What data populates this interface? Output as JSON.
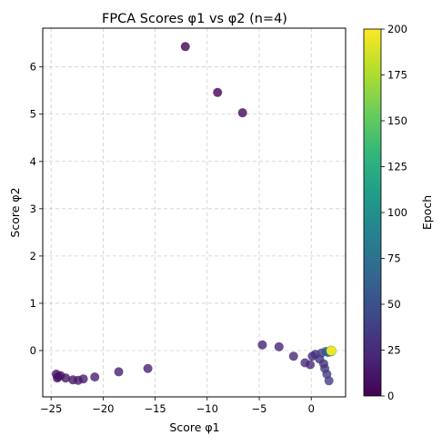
{
  "chart_data": {
    "type": "scatter",
    "title": "FPCA Scores φ1 vs φ2 (n=4)",
    "xlabel": "Score φ1",
    "ylabel": "Score φ2",
    "xlim": [
      -25.8,
      3.3
    ],
    "ylim": [
      -0.98,
      6.82
    ],
    "xticks": [
      -25,
      -20,
      -15,
      -10,
      -5,
      0
    ],
    "yticks": [
      0,
      1,
      2,
      3,
      4,
      5,
      6
    ],
    "grid": true,
    "colormap": "viridis",
    "colorbar": {
      "label": "Epoch",
      "range": [
        0,
        200
      ],
      "ticks": [
        0,
        25,
        50,
        75,
        100,
        125,
        150,
        175,
        200
      ]
    },
    "viridis_stops": [
      "#440154",
      "#482878",
      "#3e4989",
      "#31688e",
      "#26828e",
      "#1f9e89",
      "#35b779",
      "#6ece58",
      "#b5de2b",
      "#fde725"
    ],
    "points": [
      {
        "x": -24.5,
        "y": -0.5,
        "epoch": 8
      },
      {
        "x": -24.3,
        "y": -0.55,
        "epoch": 9
      },
      {
        "x": -24.1,
        "y": -0.53,
        "epoch": 10
      },
      {
        "x": -24.4,
        "y": -0.58,
        "epoch": 11
      },
      {
        "x": -23.6,
        "y": -0.58,
        "epoch": 12
      },
      {
        "x": -22.9,
        "y": -0.62,
        "epoch": 13
      },
      {
        "x": -22.4,
        "y": -0.63,
        "epoch": 14
      },
      {
        "x": -21.9,
        "y": -0.6,
        "epoch": 15
      },
      {
        "x": -20.8,
        "y": -0.56,
        "epoch": 16
      },
      {
        "x": -18.5,
        "y": -0.45,
        "epoch": 17
      },
      {
        "x": -15.7,
        "y": -0.38,
        "epoch": 18
      },
      {
        "x": -12.1,
        "y": 6.43,
        "epoch": 1
      },
      {
        "x": -9.0,
        "y": 5.46,
        "epoch": 2
      },
      {
        "x": -6.6,
        "y": 5.03,
        "epoch": 3
      },
      {
        "x": -4.7,
        "y": 0.12,
        "epoch": 19
      },
      {
        "x": -3.1,
        "y": 0.08,
        "epoch": 20
      },
      {
        "x": -1.7,
        "y": -0.12,
        "epoch": 21
      },
      {
        "x": -0.6,
        "y": -0.26,
        "epoch": 22
      },
      {
        "x": -0.1,
        "y": -0.3,
        "epoch": 23
      },
      {
        "x": 0.1,
        "y": -0.12,
        "epoch": 24
      },
      {
        "x": 0.4,
        "y": -0.08,
        "epoch": 26
      },
      {
        "x": 0.8,
        "y": -0.18,
        "epoch": 28
      },
      {
        "x": 1.2,
        "y": -0.28,
        "epoch": 30
      },
      {
        "x": 1.3,
        "y": -0.38,
        "epoch": 32
      },
      {
        "x": 1.5,
        "y": -0.5,
        "epoch": 34
      },
      {
        "x": 1.7,
        "y": -0.64,
        "epoch": 36
      },
      {
        "x": 1.0,
        "y": -0.05,
        "epoch": 40
      },
      {
        "x": 1.4,
        "y": -0.02,
        "epoch": 50
      },
      {
        "x": 1.6,
        "y": -0.04,
        "epoch": 60
      },
      {
        "x": 1.8,
        "y": -0.01,
        "epoch": 75
      },
      {
        "x": 1.9,
        "y": -0.03,
        "epoch": 90
      },
      {
        "x": 2.0,
        "y": 0.0,
        "epoch": 110
      },
      {
        "x": 1.9,
        "y": 0.01,
        "epoch": 130
      },
      {
        "x": 2.0,
        "y": -0.01,
        "epoch": 150
      },
      {
        "x": 1.9,
        "y": 0.0,
        "epoch": 170
      },
      {
        "x": 2.0,
        "y": 0.0,
        "epoch": 190
      },
      {
        "x": 1.9,
        "y": -0.01,
        "epoch": 200
      }
    ]
  }
}
